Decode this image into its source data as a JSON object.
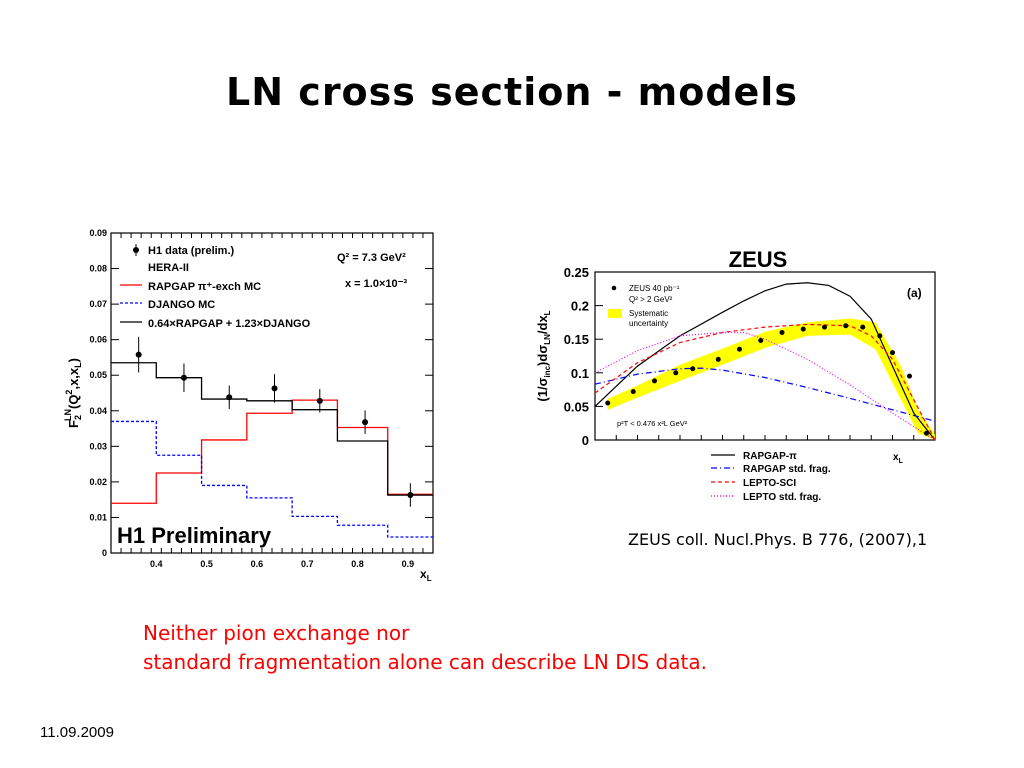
{
  "slide": {
    "title": "LN cross section -  models",
    "reference": "ZEUS coll. Nucl.Phys. B 776, (2007),1",
    "conclusion_line1": "Neither pion exchange nor",
    "conclusion_line2": "standard fragmentation alone  can describe LN DIS data.",
    "date": "11.09.2009"
  },
  "chart_data": [
    {
      "type": "line",
      "ylabel_main": "F",
      "ylabel_sub": "2",
      "ylabel_sup": "LN",
      "ylabel_rest_a": "(Q",
      "ylabel_rest_sup": "2",
      "ylabel_rest_b": ",x,x",
      "ylabel_rest_sub": "L",
      "ylabel_rest_c": ")",
      "xlabel_main": "x",
      "xlabel_sub": "L",
      "xlim": [
        0.31,
        0.95
      ],
      "ylim": [
        0,
        0.09
      ],
      "xticks": [
        0.4,
        0.5,
        0.6,
        0.7,
        0.8,
        0.9
      ],
      "xtick_labels": [
        "0.4",
        "0.5",
        "0.6",
        "0.7",
        "0.8",
        "0.9"
      ],
      "yticks": [
        0,
        0.01,
        0.02,
        0.03,
        0.04,
        0.05,
        0.06,
        0.07,
        0.08,
        0.09
      ],
      "ytick_labels": [
        "0",
        "0.01",
        "0.02",
        "0.03",
        "0.04",
        "0.05",
        "0.06",
        "0.07",
        "0.08",
        "0.09"
      ],
      "legend": [
        "H1 data (prelim.)",
        "HERA-II",
        "RAPGAP π⁺-exch MC",
        "DJANGO MC",
        "0.64×RAPGAP + 1.23×DJANGO"
      ],
      "kin_q2": "Q² = 7.3 GeV²",
      "kin_x": "x = 1.0×10⁻³",
      "watermark": "H1 Preliminary",
      "bin_edges": [
        0.31,
        0.4,
        0.49,
        0.58,
        0.67,
        0.76,
        0.86,
        0.95
      ],
      "series": [
        {
          "name": "RAPGAP π⁺-exch MC",
          "color": "#ff0000",
          "values": [
            0.014,
            0.0225,
            0.0318,
            0.0393,
            0.043,
            0.0353,
            0.0165
          ]
        },
        {
          "name": "DJANGO MC",
          "color": "#0000ff",
          "values": [
            0.037,
            0.0275,
            0.019,
            0.0155,
            0.0103,
            0.0078,
            0.0045
          ]
        },
        {
          "name": "0.64×RAPGAP + 1.23×DJANGO",
          "color": "#000000",
          "values": [
            0.0535,
            0.0493,
            0.0433,
            0.0428,
            0.0403,
            0.0315,
            0.0163
          ]
        }
      ],
      "points": {
        "name": "H1 data (prelim.)",
        "x": [
          0.365,
          0.455,
          0.545,
          0.635,
          0.725,
          0.815,
          0.905
        ],
        "y": [
          0.0558,
          0.0493,
          0.0438,
          0.0463,
          0.0428,
          0.0368,
          0.0163
        ],
        "err": [
          0.005,
          0.004,
          0.0033,
          0.004,
          0.0033,
          0.0033,
          0.0033
        ]
      }
    },
    {
      "type": "line",
      "title": "ZEUS",
      "panel_label": "(a)",
      "ylabel_a": "(1/σ",
      "ylabel_a_sub": "inc",
      "ylabel_b": ")dσ",
      "ylabel_b_sub": "LN",
      "ylabel_c": "/dx",
      "ylabel_c_sub": "L",
      "xlabel_main": "x",
      "xlabel_sub": "L",
      "xlim": [
        0.2,
        1.0
      ],
      "ylim": [
        0,
        0.25
      ],
      "yticks": [
        0,
        0.05,
        0.1,
        0.15,
        0.2,
        0.25
      ],
      "ytick_labels": [
        "0",
        "0.05",
        "0.1",
        "0.15",
        "0.2",
        "0.25"
      ],
      "legend_data": [
        "ZEUS 40 pb⁻¹",
        "Q² > 2 GeV²"
      ],
      "legend_syst": [
        "Systematic",
        "uncertainty"
      ],
      "cut_text": "p²T < 0.476 x²L GeV²",
      "model_legend": [
        "RAPGAP-π",
        "RAPGAP std. frag.",
        "LEPTO-SCI",
        "LEPTO std. frag."
      ],
      "points": {
        "x": [
          0.23,
          0.29,
          0.34,
          0.39,
          0.43,
          0.49,
          0.54,
          0.59,
          0.64,
          0.69,
          0.74,
          0.79,
          0.83,
          0.87,
          0.9,
          0.94,
          0.98
        ],
        "y": [
          0.055,
          0.072,
          0.088,
          0.1,
          0.106,
          0.12,
          0.135,
          0.148,
          0.16,
          0.165,
          0.168,
          0.17,
          0.168,
          0.155,
          0.13,
          0.095,
          0.01
        ]
      },
      "band": {
        "x": [
          0.23,
          0.3,
          0.4,
          0.5,
          0.6,
          0.7,
          0.8,
          0.86,
          0.92,
          0.96,
          1.0
        ],
        "lo": [
          0.045,
          0.063,
          0.088,
          0.112,
          0.137,
          0.155,
          0.157,
          0.135,
          0.06,
          0.01,
          0.0
        ],
        "hi": [
          0.061,
          0.081,
          0.112,
          0.136,
          0.161,
          0.175,
          0.181,
          0.175,
          0.11,
          0.045,
          0.008
        ]
      },
      "series": [
        {
          "name": "RAPGAP-π",
          "color": "#000000",
          "dash": "",
          "x": [
            0.2,
            0.3,
            0.4,
            0.5,
            0.55,
            0.6,
            0.65,
            0.7,
            0.75,
            0.8,
            0.85,
            0.9,
            0.95,
            1.0
          ],
          "y": [
            0.05,
            0.11,
            0.155,
            0.19,
            0.207,
            0.222,
            0.232,
            0.234,
            0.23,
            0.214,
            0.18,
            0.11,
            0.04,
            0.0
          ]
        },
        {
          "name": "RAPGAP std. frag.",
          "color": "#0000ff",
          "dash": "6,3,1,3",
          "x": [
            0.2,
            0.3,
            0.4,
            0.45,
            0.5,
            0.6,
            0.7,
            0.8,
            0.9,
            1.0
          ],
          "y": [
            0.083,
            0.098,
            0.106,
            0.107,
            0.104,
            0.093,
            0.078,
            0.062,
            0.045,
            0.028
          ]
        },
        {
          "name": "LEPTO-SCI",
          "color": "#ff0000",
          "dash": "4,3",
          "x": [
            0.2,
            0.3,
            0.4,
            0.5,
            0.6,
            0.7,
            0.8,
            0.85,
            0.9,
            0.95,
            1.0
          ],
          "y": [
            0.07,
            0.115,
            0.145,
            0.16,
            0.168,
            0.172,
            0.17,
            0.155,
            0.12,
            0.06,
            0.0
          ]
        },
        {
          "name": "LEPTO std. frag.",
          "color": "#ff00ff",
          "dash": "1,2",
          "x": [
            0.2,
            0.3,
            0.4,
            0.5,
            0.55,
            0.6,
            0.7,
            0.8,
            0.9,
            1.0
          ],
          "y": [
            0.1,
            0.133,
            0.155,
            0.16,
            0.16,
            0.15,
            0.12,
            0.082,
            0.04,
            0.0
          ]
        }
      ]
    }
  ]
}
